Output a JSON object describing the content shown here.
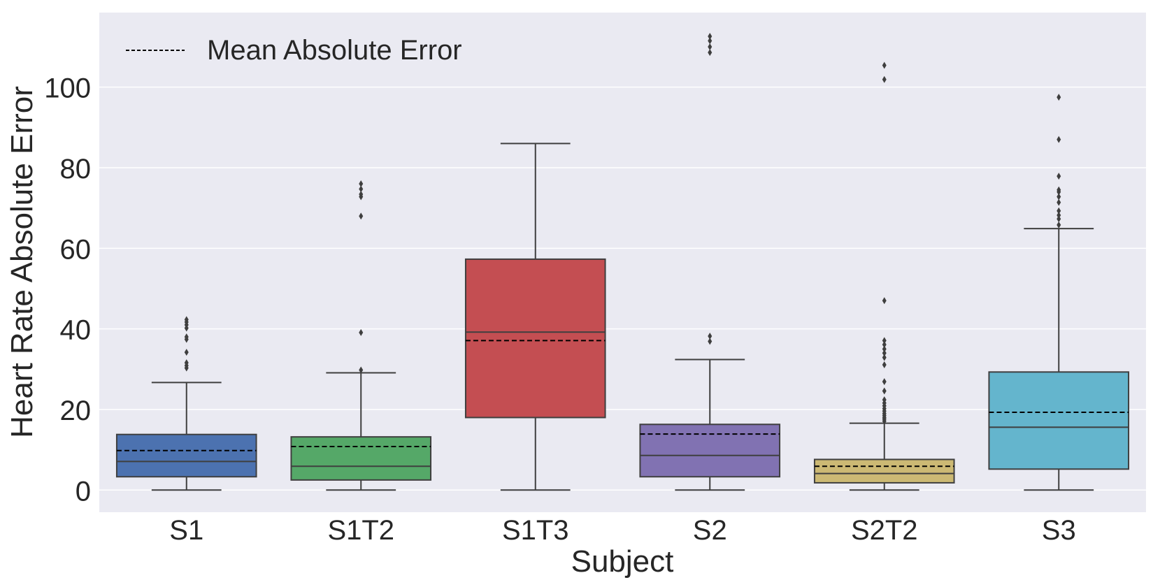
{
  "chart_data": {
    "type": "box",
    "xlabel": "Subject",
    "ylabel": "Heart Rate Absolute Error",
    "ylim": [
      -5.5,
      118.5
    ],
    "yticks": [
      0,
      20,
      40,
      60,
      80,
      100
    ],
    "grid": "horizontal",
    "legend": {
      "label": "Mean Absolute Error",
      "placement": "top-left",
      "line_style": "dashed"
    },
    "categories": [
      "S1",
      "S1T2",
      "S1T3",
      "S2",
      "S2T2",
      "S3"
    ],
    "boxes": [
      {
        "name": "S1",
        "color": "#4c72b0",
        "whisker_low": 0,
        "q1": 3.3,
        "median": 7.1,
        "q3": 13.8,
        "whisker_high": 26.7,
        "mean": 9.8,
        "outliers": [
          30.3,
          30.9,
          31.6,
          34.2,
          37.4,
          38.0,
          40.2,
          41.0,
          41.7,
          42.3
        ]
      },
      {
        "name": "S1T2",
        "color": "#55a868",
        "whisker_low": 0,
        "q1": 2.5,
        "median": 5.9,
        "q3": 13.2,
        "whisker_high": 29.1,
        "mean": 10.8,
        "outliers": [
          29.8,
          39.1,
          68.0,
          72.8,
          73.4,
          74.7,
          76.0
        ]
      },
      {
        "name": "S1T3",
        "color": "#c44e52",
        "whisker_low": 0,
        "q1": 18.0,
        "median": 39.2,
        "q3": 57.3,
        "whisker_high": 86.0,
        "mean": 37.1,
        "outliers": []
      },
      {
        "name": "S2",
        "color": "#8172b2",
        "whisker_low": 0,
        "q1": 3.3,
        "median": 8.6,
        "q3": 16.3,
        "whisker_high": 32.4,
        "mean": 13.9,
        "outliers": [
          36.9,
          38.2,
          108.6,
          110.0,
          111.5,
          112.6
        ]
      },
      {
        "name": "S2T2",
        "color": "#ccb974",
        "whisker_low": 0,
        "q1": 1.8,
        "median": 4.1,
        "q3": 7.6,
        "whisker_high": 16.6,
        "mean": 5.9,
        "outliers": [
          17.1,
          17.6,
          18.0,
          18.5,
          19.0,
          19.6,
          20.2,
          20.9,
          21.6,
          22.4,
          24.6,
          26.9,
          31.1,
          32.9,
          34.0,
          35.0,
          36.1,
          37.1,
          47.0,
          101.9,
          105.4
        ]
      },
      {
        "name": "S3",
        "color": "#64b5cd",
        "whisker_low": 0,
        "q1": 5.2,
        "median": 15.6,
        "q3": 29.3,
        "whisker_high": 64.9,
        "mean": 19.3,
        "outliers": [
          65.8,
          67.3,
          68.2,
          69.3,
          71.4,
          72.8,
          74.0,
          74.5,
          77.9,
          87.0,
          97.5
        ]
      }
    ]
  }
}
